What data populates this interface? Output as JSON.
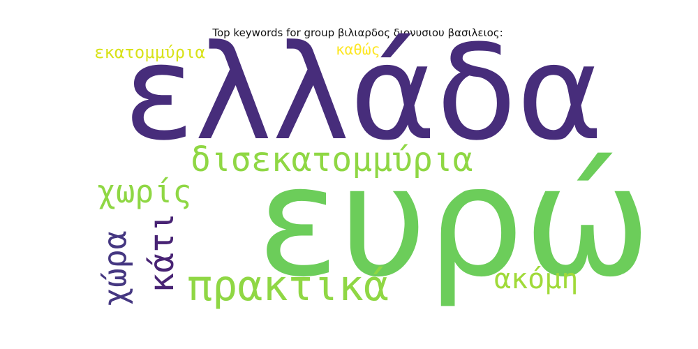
{
  "title": "Top keywords for group βιλιαρδος διονυσιου βασιλειος:",
  "palette": {
    "dark_purple": "#472d7b",
    "deep_purple": "#482374",
    "slate_purple": "#453781",
    "green": "#6ccd5a",
    "lime_green": "#8fd744",
    "yellow_green": "#a0da39",
    "yellow": "#d8e219",
    "bright_yellow": "#fde725"
  },
  "words": [
    {
      "text": "ελλάδα",
      "color": "#472d7b",
      "orientation": "horizontal"
    },
    {
      "text": "ευρώ",
      "color": "#6ccd5a",
      "orientation": "horizontal"
    },
    {
      "text": "δισεκατομμύρια",
      "color": "#8fd744",
      "orientation": "horizontal"
    },
    {
      "text": "πρακτικά",
      "color": "#8fd744",
      "orientation": "horizontal"
    },
    {
      "text": "χωρίς",
      "color": "#8fd744",
      "orientation": "horizontal"
    },
    {
      "text": "κάτι",
      "color": "#482374",
      "orientation": "vertical"
    },
    {
      "text": "χώρα",
      "color": "#453781",
      "orientation": "vertical"
    },
    {
      "text": "ακόμη",
      "color": "#a0da39",
      "orientation": "horizontal"
    },
    {
      "text": "εκατομμύρια",
      "color": "#d8e219",
      "orientation": "horizontal"
    },
    {
      "text": "καθώς",
      "color": "#fde725",
      "orientation": "horizontal"
    }
  ]
}
